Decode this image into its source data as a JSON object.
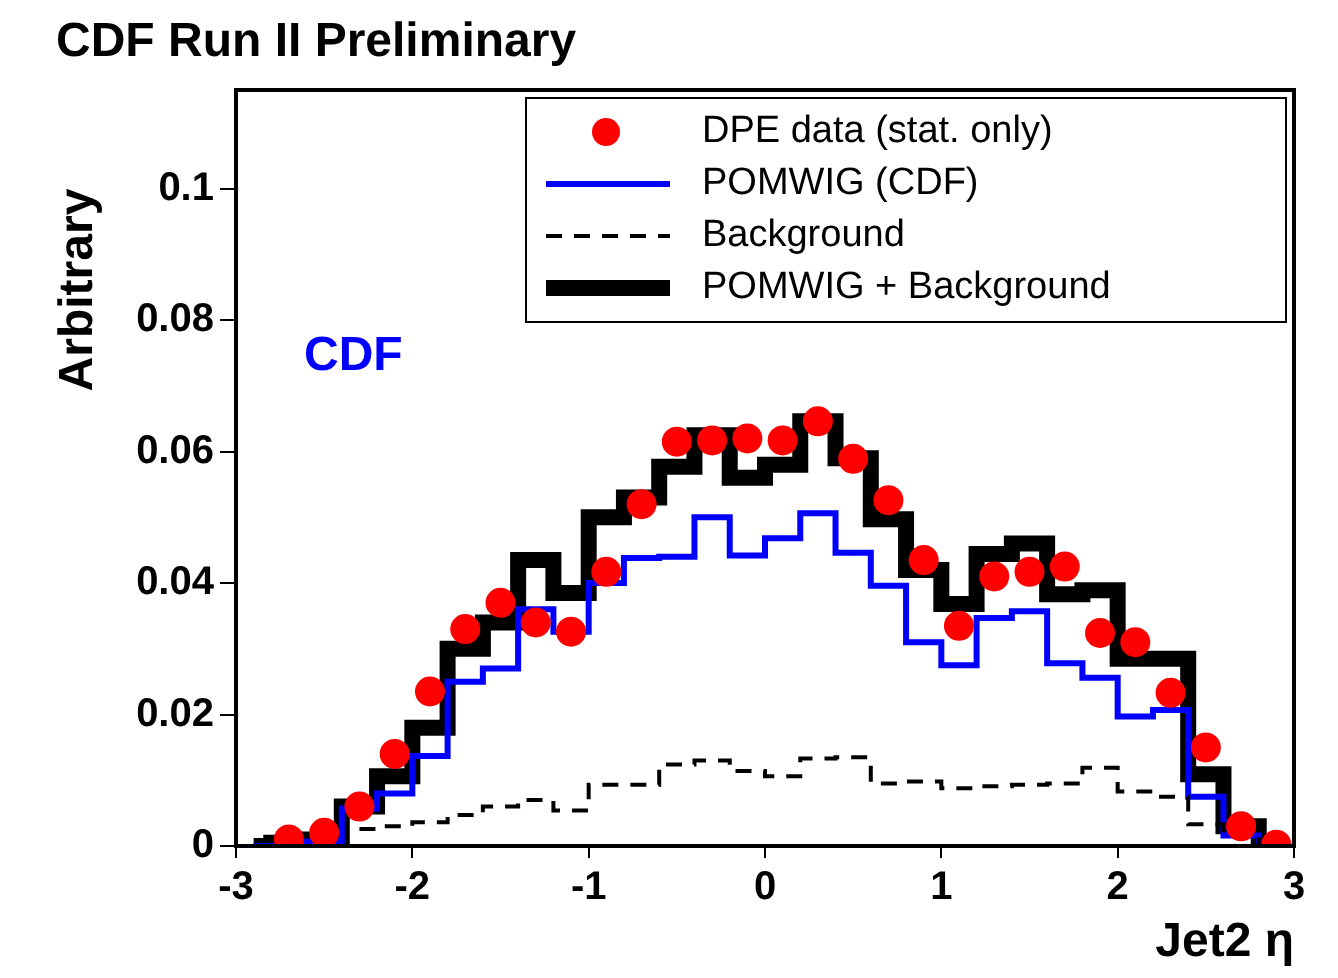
{
  "chart_data": {
    "type": "step",
    "title": "CDF Run II Preliminary",
    "xlabel": "Jet2 η",
    "ylabel": "Arbitrary",
    "x": [
      -2.9,
      -2.7,
      -2.5,
      -2.3,
      -2.1,
      -1.9,
      -1.7,
      -1.5,
      -1.3,
      -1.1,
      -0.9,
      -0.7,
      -0.5,
      -0.3,
      -0.1,
      0.1,
      0.3,
      0.5,
      0.7,
      0.9,
      1.1,
      1.3,
      1.5,
      1.7,
      1.9,
      2.1,
      2.3,
      2.5,
      2.7,
      2.9
    ],
    "series": [
      {
        "name": "DPE data (stat. only)",
        "type": "scatter",
        "color": "#ff0000",
        "marker": "circle",
        "values": [
          null,
          0.001,
          0.002,
          0.006,
          0.014,
          0.0235,
          0.033,
          0.037,
          0.034,
          0.0326,
          0.0417,
          0.052,
          0.0615,
          0.0617,
          0.062,
          0.0617,
          0.0646,
          0.0589,
          0.0526,
          0.0435,
          0.0335,
          0.041,
          0.0417,
          0.0425,
          0.0324,
          0.031,
          0.0233,
          0.015,
          0.003,
          0.0002
        ]
      },
      {
        "name": "POMWIG (CDF)",
        "color": "#0000ff",
        "line_style": "solid",
        "values": [
          0,
          0,
          0.0007,
          0.0057,
          0.008,
          0.0137,
          0.025,
          0.027,
          0.036,
          0.0326,
          0.04,
          0.0438,
          0.044,
          0.05,
          0.0442,
          0.0468,
          0.0506,
          0.0446,
          0.0396,
          0.031,
          0.0275,
          0.0347,
          0.0357,
          0.0278,
          0.0256,
          0.0197,
          0.0207,
          0.0075,
          0.0016,
          0
        ]
      },
      {
        "name": "Background",
        "color": "#000000",
        "line_style": "dashed",
        "values": [
          null,
          null,
          null,
          0.0026,
          0.003,
          0.0036,
          0.0047,
          0.006,
          0.007,
          0.0054,
          0.0093,
          0.0093,
          0.0124,
          0.013,
          0.0114,
          0.0106,
          0.0133,
          0.0135,
          0.0095,
          0.0098,
          0.0088,
          0.0091,
          0.0093,
          0.0095,
          0.0119,
          0.0083,
          0.0075,
          0.0033,
          0.002,
          0.0002
        ]
      },
      {
        "name": "POMWIG + Background",
        "color": "#000000",
        "line_style": "solid",
        "values": [
          0,
          0.0005,
          0.001,
          0.006,
          0.0106,
          0.018,
          0.03,
          0.034,
          0.0435,
          0.0385,
          0.05,
          0.053,
          0.0577,
          0.0625,
          0.056,
          0.058,
          0.0646,
          0.059,
          0.0497,
          0.042,
          0.0368,
          0.0444,
          0.046,
          0.0383,
          0.0389,
          0.0285,
          0.0285,
          0.0109,
          0.003,
          0.0002
        ]
      }
    ],
    "xlim": [
      -3,
      3
    ],
    "xticks": [
      -3,
      -2,
      -1,
      0,
      1,
      2,
      3
    ],
    "ylim": [
      0,
      0.115
    ],
    "yticks": [
      0,
      0.02,
      0.04,
      0.06,
      0.08,
      0.1
    ],
    "grid": false,
    "legend": "top right",
    "annotations": [
      "CDF"
    ]
  }
}
